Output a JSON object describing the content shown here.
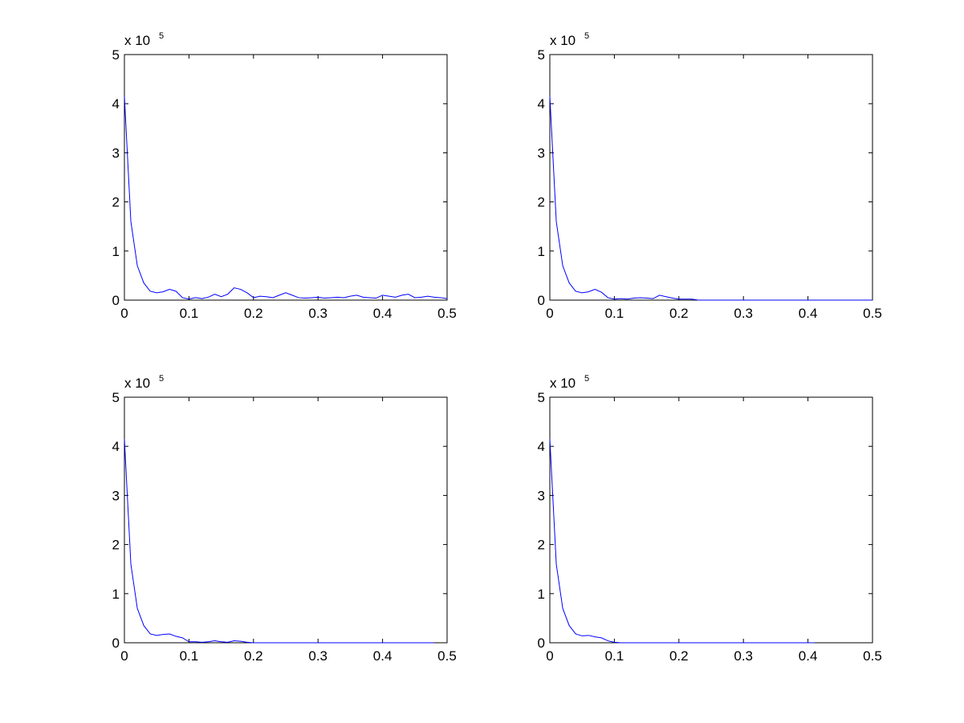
{
  "chart_data": [
    {
      "type": "line",
      "xlim": [
        0,
        0.5
      ],
      "ylim": [
        0,
        5
      ],
      "xticks": [
        0,
        0.1,
        0.2,
        0.3,
        0.4,
        0.5
      ],
      "yticks": [
        0,
        1,
        2,
        3,
        4,
        5
      ],
      "y_scale_label": {
        "base": "x 10",
        "exponent": "5"
      },
      "series": [
        {
          "color": "#0000ff",
          "x": [
            0,
            0.01,
            0.02,
            0.03,
            0.04,
            0.05,
            0.06,
            0.07,
            0.08,
            0.09,
            0.1,
            0.11,
            0.12,
            0.13,
            0.14,
            0.15,
            0.16,
            0.17,
            0.18,
            0.19,
            0.2,
            0.21,
            0.22,
            0.23,
            0.24,
            0.25,
            0.26,
            0.27,
            0.28,
            0.29,
            0.3,
            0.31,
            0.32,
            0.33,
            0.34,
            0.35,
            0.36,
            0.37,
            0.38,
            0.39,
            0.4,
            0.41,
            0.42,
            0.43,
            0.44,
            0.45,
            0.46,
            0.47,
            0.48,
            0.49,
            0.5
          ],
          "values": [
            4.15,
            1.6,
            0.7,
            0.35,
            0.18,
            0.15,
            0.17,
            0.22,
            0.18,
            0.05,
            0.02,
            0.05,
            0.03,
            0.06,
            0.12,
            0.07,
            0.12,
            0.25,
            0.22,
            0.15,
            0.05,
            0.08,
            0.07,
            0.05,
            0.1,
            0.15,
            0.1,
            0.05,
            0.04,
            0.05,
            0.06,
            0.04,
            0.05,
            0.06,
            0.05,
            0.08,
            0.1,
            0.06,
            0.05,
            0.04,
            0.1,
            0.08,
            0.06,
            0.1,
            0.12,
            0.05,
            0.06,
            0.08,
            0.06,
            0.05,
            0.03
          ]
        }
      ]
    },
    {
      "type": "line",
      "xlim": [
        0,
        0.5
      ],
      "ylim": [
        0,
        5
      ],
      "xticks": [
        0,
        0.1,
        0.2,
        0.3,
        0.4,
        0.5
      ],
      "yticks": [
        0,
        1,
        2,
        3,
        4,
        5
      ],
      "y_scale_label": {
        "base": "x 10",
        "exponent": "5"
      },
      "series": [
        {
          "color": "#0000ff",
          "x": [
            0,
            0.01,
            0.02,
            0.03,
            0.04,
            0.05,
            0.06,
            0.07,
            0.08,
            0.09,
            0.1,
            0.11,
            0.12,
            0.13,
            0.14,
            0.15,
            0.16,
            0.17,
            0.18,
            0.19,
            0.2,
            0.21,
            0.22,
            0.23,
            0.24,
            0.25,
            0.26,
            0.27,
            0.28,
            0.29,
            0.3,
            0.31,
            0.32,
            0.33,
            0.34,
            0.35,
            0.36,
            0.37,
            0.38,
            0.39,
            0.4,
            0.41,
            0.42,
            0.43,
            0.44,
            0.45,
            0.46,
            0.47,
            0.48,
            0.49,
            0.5
          ],
          "values": [
            4.15,
            1.6,
            0.7,
            0.35,
            0.18,
            0.15,
            0.17,
            0.22,
            0.16,
            0.05,
            0.02,
            0.03,
            0.02,
            0.04,
            0.05,
            0.04,
            0.03,
            0.1,
            0.07,
            0.04,
            0.02,
            0.02,
            0.02,
            0,
            0,
            0,
            0,
            0,
            0,
            0,
            0,
            0,
            0,
            0,
            0,
            0,
            0,
            0,
            0,
            0,
            0,
            0,
            0,
            0,
            0,
            0,
            0,
            0,
            0,
            0,
            0
          ]
        }
      ]
    },
    {
      "type": "line",
      "xlim": [
        0,
        0.5
      ],
      "ylim": [
        0,
        5
      ],
      "xticks": [
        0,
        0.1,
        0.2,
        0.3,
        0.4,
        0.5
      ],
      "yticks": [
        0,
        1,
        2,
        3,
        4,
        5
      ],
      "y_scale_label": {
        "base": "x 10",
        "exponent": "5"
      },
      "series": [
        {
          "color": "#0000ff",
          "x": [
            0,
            0.01,
            0.02,
            0.03,
            0.04,
            0.05,
            0.06,
            0.07,
            0.08,
            0.09,
            0.1,
            0.11,
            0.12,
            0.13,
            0.14,
            0.15,
            0.16,
            0.17,
            0.18,
            0.19,
            0.2,
            0.21,
            0.22,
            0.23,
            0.24,
            0.25,
            0.26,
            0.27,
            0.28,
            0.29,
            0.3,
            0.31,
            0.32,
            0.33,
            0.34,
            0.35,
            0.36,
            0.37,
            0.38,
            0.39,
            0.4,
            0.41,
            0.42,
            0.43,
            0.44,
            0.45,
            0.46,
            0.47,
            0.48
          ],
          "values": [
            4.15,
            1.6,
            0.7,
            0.35,
            0.18,
            0.15,
            0.17,
            0.18,
            0.13,
            0.1,
            0.02,
            0.02,
            0.01,
            0.02,
            0.04,
            0.02,
            0.01,
            0.04,
            0.03,
            0.01,
            0,
            0,
            0,
            0,
            0,
            0,
            0,
            0,
            0,
            0,
            0,
            0,
            0,
            0,
            0,
            0,
            0,
            0,
            0,
            0,
            0,
            0,
            0,
            0,
            0,
            0,
            0,
            0,
            0
          ]
        }
      ]
    },
    {
      "type": "line",
      "xlim": [
        0,
        0.5
      ],
      "ylim": [
        0,
        5
      ],
      "xticks": [
        0,
        0.1,
        0.2,
        0.3,
        0.4,
        0.5
      ],
      "yticks": [
        0,
        1,
        2,
        3,
        4,
        5
      ],
      "y_scale_label": {
        "base": "x 10",
        "exponent": "5"
      },
      "series": [
        {
          "color": "#0000ff",
          "x": [
            0,
            0.01,
            0.02,
            0.03,
            0.04,
            0.05,
            0.06,
            0.07,
            0.08,
            0.09,
            0.1,
            0.11,
            0.12,
            0.13,
            0.14,
            0.15,
            0.16,
            0.17,
            0.18,
            0.19,
            0.2,
            0.21,
            0.22,
            0.23,
            0.24,
            0.25,
            0.26,
            0.27,
            0.28,
            0.29,
            0.3,
            0.31,
            0.32,
            0.33,
            0.34,
            0.35,
            0.36,
            0.37,
            0.38,
            0.39,
            0.4,
            0.41
          ],
          "values": [
            4.15,
            1.6,
            0.7,
            0.35,
            0.18,
            0.14,
            0.15,
            0.12,
            0.1,
            0.04,
            0.01,
            0,
            0,
            0,
            0,
            0,
            0,
            0,
            0,
            0,
            0,
            0,
            0,
            0,
            0,
            0,
            0,
            0,
            0,
            0,
            0,
            0,
            0,
            0,
            0,
            0,
            0,
            0,
            0,
            0,
            0,
            0
          ]
        }
      ]
    }
  ]
}
